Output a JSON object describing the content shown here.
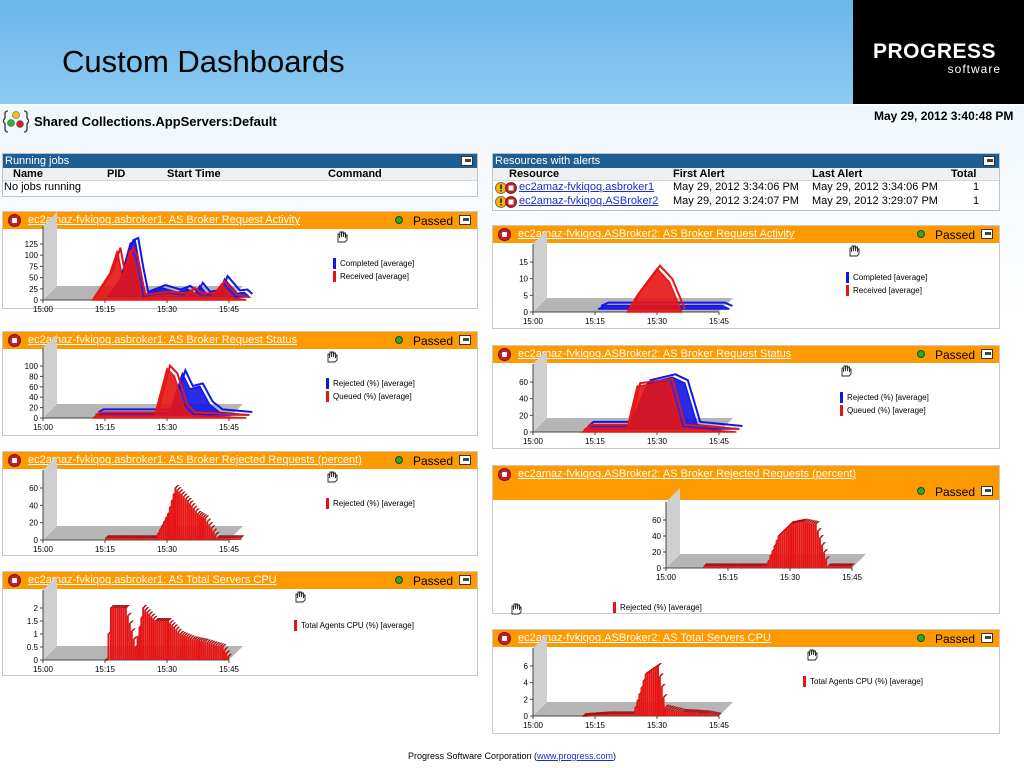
{
  "slide": {
    "title": "Custom Dashboards"
  },
  "logo": {
    "name": "PROGRESS",
    "sub": "software"
  },
  "collection": {
    "title": "Shared Collections.AppServers:Default"
  },
  "timestamp": "May 29, 2012 3:40:48 PM",
  "running_jobs": {
    "title": "Running jobs",
    "columns": [
      "Name",
      "PID",
      "Start Time",
      "Command"
    ],
    "empty_text": "No jobs running"
  },
  "alerts": {
    "title": "Resources with alerts",
    "columns": [
      "Resource",
      "First Alert",
      "Last Alert",
      "Total"
    ],
    "rows": [
      {
        "resource": "ec2amaz-fvkiqoq.asbroker1",
        "first": "May 29, 2012 3:34:06 PM",
        "last": "May 29, 2012 3:34:06 PM",
        "total": "1"
      },
      {
        "resource": "ec2amaz-fvkiqoq.ASBroker2",
        "first": "May 29, 2012 3:24:07 PM",
        "last": "May 29, 2012 3:29:07 PM",
        "total": "1"
      }
    ]
  },
  "panels": [
    {
      "id": "p1",
      "link": "ec2amaz-fvkiqoq.asbroker1: AS Broker Request Activity",
      "status": "Passed"
    },
    {
      "id": "p2",
      "link": "ec2amaz-fvkiqoq.asbroker1: AS Broker Request Status",
      "status": "Passed"
    },
    {
      "id": "p3",
      "link": "ec2amaz-fvkiqoq.asbroker1: AS Broker Rejected Requests (percent)",
      "status": "Passed"
    },
    {
      "id": "p4",
      "link": "ec2amaz-fvkiqoq.asbroker1: AS Total Servers CPU",
      "status": "Passed"
    },
    {
      "id": "p5",
      "link": "ec2amaz-fvkiqoq.ASBroker2: AS Broker Request Activity",
      "status": "Passed"
    },
    {
      "id": "p6",
      "link": "ec2amaz-fvkiqoq.ASBroker2: AS Broker Request Status",
      "status": "Passed"
    },
    {
      "id": "p7",
      "link": "ec2amaz-fvkiqoq.ASBroker2: AS Broker Rejected Requests (percent)",
      "status": "Passed"
    },
    {
      "id": "p8",
      "link": "ec2amaz-fvkiqoq.ASBroker2: AS Total Servers CPU",
      "status": "Passed"
    }
  ],
  "colors": {
    "blue_series": "#1515e6",
    "red_series": "#e61515",
    "panel_header": "#ff9900",
    "table_header": "#1f5e93",
    "floor": "#b5b5b5"
  },
  "chart_data": [
    {
      "type": "area",
      "x": [
        "15:00",
        "15:15",
        "15:30",
        "15:45"
      ],
      "ylim": [
        0,
        125
      ],
      "yticks": [
        "0",
        "25",
        "50",
        "75",
        "100",
        "125"
      ],
      "series": [
        {
          "name": "Completed [average]",
          "color": "blue",
          "values": [
            [
              15.25,
              0
            ],
            [
              15.3,
              40
            ],
            [
              15.34,
              120
            ],
            [
              15.36,
              125
            ],
            [
              15.38,
              60
            ],
            [
              15.4,
              5
            ],
            [
              15.47,
              20
            ],
            [
              15.53,
              10
            ],
            [
              15.57,
              18
            ],
            [
              15.6,
              5
            ],
            [
              15.62,
              25
            ],
            [
              15.65,
              5
            ],
            [
              15.7,
              10
            ],
            [
              15.72,
              40
            ],
            [
              15.77,
              8
            ],
            [
              15.8,
              10
            ],
            [
              15.82,
              0
            ]
          ]
        },
        {
          "name": "Received [average]",
          "color": "red",
          "values": [
            [
              15.2,
              0
            ],
            [
              15.27,
              60
            ],
            [
              15.3,
              110
            ],
            [
              15.32,
              50
            ],
            [
              15.35,
              110
            ],
            [
              15.37,
              90
            ],
            [
              15.4,
              5
            ],
            [
              15.5,
              12
            ],
            [
              15.57,
              8
            ],
            [
              15.6,
              20
            ],
            [
              15.63,
              8
            ],
            [
              15.68,
              8
            ],
            [
              15.72,
              35
            ],
            [
              15.77,
              5
            ],
            [
              15.82,
              0
            ]
          ]
        }
      ]
    },
    {
      "type": "area",
      "x": [
        "15:00",
        "15:15",
        "15:30",
        "15:45"
      ],
      "ylim": [
        0,
        100
      ],
      "yticks": [
        "0",
        "20",
        "40",
        "60",
        "80",
        "100"
      ],
      "series": [
        {
          "name": "Rejected (%) [average]",
          "color": "blue",
          "values": [
            [
              15.2,
              0
            ],
            [
              15.22,
              5
            ],
            [
              15.5,
              5
            ],
            [
              15.55,
              80
            ],
            [
              15.58,
              50
            ],
            [
              15.62,
              55
            ],
            [
              15.66,
              20
            ],
            [
              15.7,
              5
            ],
            [
              15.82,
              0
            ]
          ]
        },
        {
          "name": "Queued (%) [average]",
          "color": "red",
          "values": [
            [
              15.2,
              0
            ],
            [
              15.22,
              5
            ],
            [
              15.45,
              5
            ],
            [
              15.5,
              95
            ],
            [
              15.53,
              80
            ],
            [
              15.57,
              20
            ],
            [
              15.6,
              5
            ],
            [
              15.82,
              0
            ]
          ]
        }
      ]
    },
    {
      "type": "bar",
      "x": [
        "15:00",
        "15:15",
        "15:30",
        "15:45"
      ],
      "ylim": [
        0,
        60
      ],
      "yticks": [
        "0",
        "20",
        "40",
        "60"
      ],
      "series": [
        {
          "name": "Rejected (%) [average]",
          "color": "red",
          "values": [
            [
              15.25,
              2
            ],
            [
              15.45,
              2
            ],
            [
              15.5,
              30
            ],
            [
              15.53,
              60
            ],
            [
              15.58,
              45
            ],
            [
              15.62,
              30
            ],
            [
              15.65,
              25
            ],
            [
              15.7,
              2
            ],
            [
              15.8,
              2
            ]
          ]
        }
      ]
    },
    {
      "type": "bar",
      "x": [
        "15:00",
        "15:15",
        "15:30",
        "15:45"
      ],
      "ylim": [
        0,
        2
      ],
      "yticks": [
        "0",
        "0.5",
        "1",
        "1.5",
        "2"
      ],
      "series": [
        {
          "name": "Total Agents CPU (%) [average]",
          "color": "red",
          "values": [
            [
              15.25,
              0
            ],
            [
              15.27,
              2
            ],
            [
              15.33,
              2
            ],
            [
              15.37,
              0.5
            ],
            [
              15.4,
              2
            ],
            [
              15.45,
              1.5
            ],
            [
              15.5,
              1.5
            ],
            [
              15.55,
              1
            ],
            [
              15.6,
              0.8
            ],
            [
              15.65,
              0.7
            ],
            [
              15.72,
              0.5
            ],
            [
              15.75,
              0
            ]
          ]
        }
      ]
    },
    {
      "type": "area",
      "x": [
        "15:00",
        "15:15",
        "15:30",
        "15:45"
      ],
      "ylim": [
        0,
        15
      ],
      "yticks": [
        "0",
        "5",
        "10",
        "15"
      ],
      "series": [
        {
          "name": "Completed [average]",
          "color": "blue",
          "values": [
            [
              15.25,
              0
            ],
            [
              15.28,
              1
            ],
            [
              15.75,
              1
            ],
            [
              15.78,
              0
            ]
          ]
        },
        {
          "name": "Received [average]",
          "color": "red",
          "values": [
            [
              15.38,
              0
            ],
            [
              15.42,
              5
            ],
            [
              15.5,
              13
            ],
            [
              15.55,
              9
            ],
            [
              15.6,
              0
            ]
          ]
        }
      ]
    },
    {
      "type": "area",
      "x": [
        "15:00",
        "15:15",
        "15:30",
        "15:45"
      ],
      "ylim": [
        0,
        60
      ],
      "yticks": [
        "0",
        "20",
        "40",
        "60"
      ],
      "series": [
        {
          "name": "Rejected (%) [average]",
          "color": "blue",
          "values": [
            [
              15.2,
              0
            ],
            [
              15.22,
              5
            ],
            [
              15.38,
              5
            ],
            [
              15.45,
              55
            ],
            [
              15.55,
              62
            ],
            [
              15.6,
              55
            ],
            [
              15.65,
              5
            ],
            [
              15.82,
              0
            ]
          ]
        },
        {
          "name": "Queued (%) [average]",
          "color": "red",
          "values": [
            [
              15.2,
              0
            ],
            [
              15.22,
              5
            ],
            [
              15.38,
              5
            ],
            [
              15.42,
              55
            ],
            [
              15.5,
              58
            ],
            [
              15.55,
              60
            ],
            [
              15.6,
              5
            ],
            [
              15.82,
              0
            ]
          ]
        }
      ]
    },
    {
      "type": "bar",
      "x": [
        "15:00",
        "15:15",
        "15:30",
        "15:45"
      ],
      "ylim": [
        0,
        60
      ],
      "yticks": [
        "0",
        "20",
        "40",
        "60"
      ],
      "series": [
        {
          "name": "Rejected (%) [average]",
          "color": "red",
          "values": [
            [
              15.15,
              2
            ],
            [
              15.4,
              2
            ],
            [
              15.45,
              40
            ],
            [
              15.5,
              55
            ],
            [
              15.55,
              58
            ],
            [
              15.6,
              55
            ],
            [
              15.65,
              2
            ],
            [
              15.75,
              2
            ]
          ]
        }
      ]
    },
    {
      "type": "bar",
      "x": [
        "15:00",
        "15:15",
        "15:30",
        "15:45"
      ],
      "ylim": [
        0,
        6
      ],
      "yticks": [
        "0",
        "2",
        "4",
        "6"
      ],
      "series": [
        {
          "name": "Total Agents CPU (%) [average]",
          "color": "red",
          "values": [
            [
              15.2,
              0
            ],
            [
              15.3,
              0.2
            ],
            [
              15.4,
              0.2
            ],
            [
              15.45,
              5
            ],
            [
              15.5,
              6
            ],
            [
              15.53,
              1
            ],
            [
              15.6,
              0.5
            ],
            [
              15.7,
              0.3
            ],
            [
              15.75,
              0
            ]
          ]
        }
      ]
    }
  ],
  "footer": {
    "text": "Progress Software Corporation (",
    "link": "www.progress.com",
    "close": ")"
  }
}
